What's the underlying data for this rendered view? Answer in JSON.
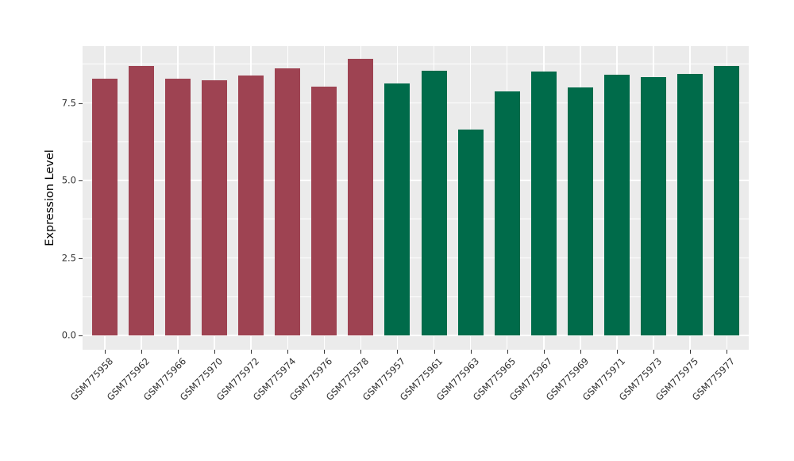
{
  "chart_data": {
    "type": "bar",
    "title": "",
    "xlabel": "",
    "ylabel": "Expression Level",
    "categories": [
      "GSM775958",
      "GSM775962",
      "GSM775966",
      "GSM775970",
      "GSM775972",
      "GSM775974",
      "GSM775976",
      "GSM775978",
      "GSM775957",
      "GSM775961",
      "GSM775963",
      "GSM775965",
      "GSM775967",
      "GSM775969",
      "GSM775971",
      "GSM775973",
      "GSM775975",
      "GSM775977"
    ],
    "values": [
      8.27,
      8.68,
      8.29,
      8.22,
      8.38,
      8.61,
      8.02,
      8.92,
      8.14,
      8.53,
      6.65,
      7.88,
      8.52,
      7.99,
      8.42,
      8.33,
      8.43,
      8.68
    ],
    "groups": [
      "group1",
      "group1",
      "group1",
      "group1",
      "group1",
      "group1",
      "group1",
      "group1",
      "group2",
      "group2",
      "group2",
      "group2",
      "group2",
      "group2",
      "group2",
      "group2",
      "group2",
      "group2"
    ],
    "group_colors": {
      "group1": "#9E4352",
      "group2": "#006B4A"
    },
    "y_ticks": [
      0.0,
      2.5,
      5.0,
      7.5
    ],
    "y_tick_labels": [
      "0.0",
      "2.5",
      "5.0",
      "7.5"
    ],
    "y_minor_ticks": [
      1.25,
      3.75,
      6.25,
      8.75
    ],
    "ylim": [
      0,
      9.36
    ],
    "x_tick_angle": 45,
    "grid": true,
    "legend_position": "none",
    "panel_background": "#EBEBEB",
    "grid_color": "#FFFFFF",
    "axis_text_color": "#303030",
    "axis_title_color": "#000000"
  }
}
